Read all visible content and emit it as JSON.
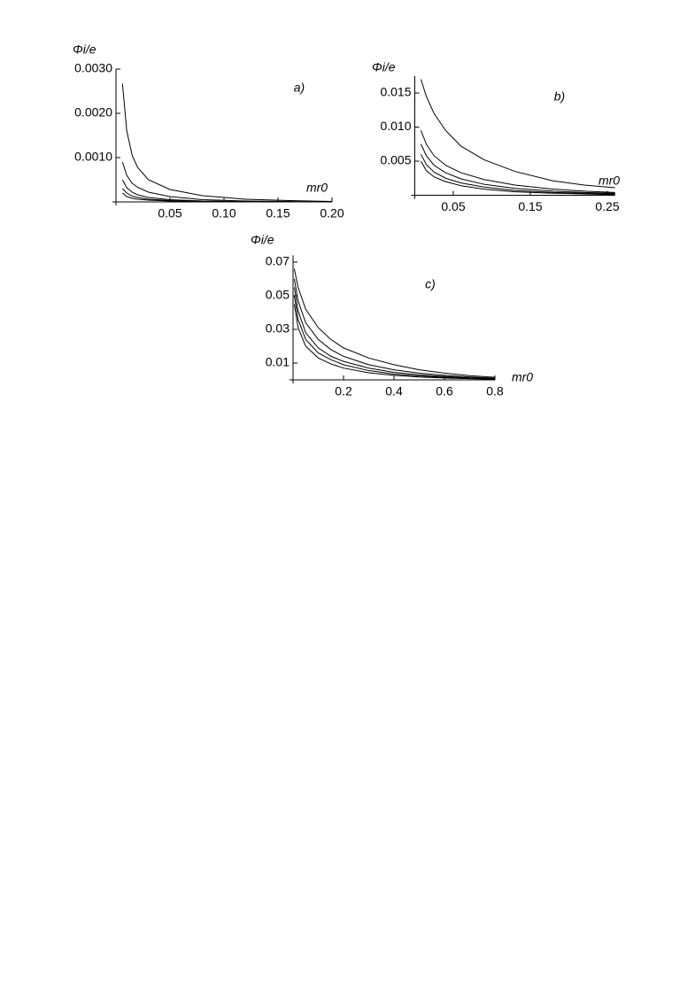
{
  "chart_data": [
    {
      "type": "line",
      "title": "a)",
      "y_label": "Φi/e",
      "x_label": "mr0",
      "x": [
        0.006,
        0.01,
        0.015,
        0.02,
        0.03,
        0.05,
        0.08,
        0.12,
        0.16,
        0.2
      ],
      "series": [
        {
          "color": "#000000",
          "values": [
            0.00267,
            0.0016,
            0.00105,
            0.00078,
            0.0005,
            0.00028,
            0.00014,
            6e-05,
            3e-05,
            1e-05
          ]
        },
        {
          "color": "#000000",
          "values": [
            0.0009,
            0.0006,
            0.00042,
            0.00033,
            0.00022,
            0.00012,
            5e-05,
            2e-05,
            1e-05,
            0
          ]
        },
        {
          "color": "#000000",
          "values": [
            0.0005,
            0.00032,
            0.00022,
            0.00016,
            0.0001,
            5e-05,
            2e-05,
            1e-05,
            0,
            0
          ]
        },
        {
          "color": "#000000",
          "values": [
            0.0003,
            0.0002,
            0.00013,
            0.0001,
            6e-05,
            3e-05,
            1e-05,
            0,
            0,
            0
          ]
        },
        {
          "color": "#000000",
          "values": [
            0.0002,
            0.00012,
            8e-05,
            6e-05,
            4e-05,
            2e-05,
            1e-05,
            0,
            0,
            0
          ]
        }
      ],
      "xlim": [
        0,
        0.2
      ],
      "xticks": [
        0.05,
        {
          "value": 0.1,
          "label": "0.10"
        },
        0.15,
        {
          "value": 0.2,
          "label": "0.20"
        }
      ],
      "ylim": [
        0,
        0.003
      ],
      "yticks": [
        {
          "value": 0.001,
          "label": "0.0010"
        },
        {
          "value": 0.002,
          "label": "0.0020"
        },
        {
          "value": 0.003,
          "label": "0.0030"
        }
      ]
    },
    {
      "type": "line",
      "title": "b)",
      "y_label": "Φi/e",
      "x_label": "mr0",
      "x": [
        0.008,
        0.015,
        0.025,
        0.04,
        0.06,
        0.09,
        0.13,
        0.18,
        0.22,
        0.26
      ],
      "series": [
        {
          "color": "#000000",
          "values": [
            0.017,
            0.0145,
            0.012,
            0.0095,
            0.0072,
            0.0052,
            0.0035,
            0.0021,
            0.0015,
            0.0011
          ]
        },
        {
          "color": "#000000",
          "values": [
            0.0095,
            0.0075,
            0.0058,
            0.0044,
            0.0033,
            0.0023,
            0.0015,
            0.0009,
            0.0006,
            0.0004
          ]
        },
        {
          "color": "#000000",
          "values": [
            0.0075,
            0.0058,
            0.0044,
            0.0033,
            0.0024,
            0.0016,
            0.001,
            0.0006,
            0.0004,
            0.0003
          ]
        },
        {
          "color": "#000000",
          "values": [
            0.006,
            0.0045,
            0.0034,
            0.0025,
            0.0018,
            0.0012,
            0.0007,
            0.0004,
            0.0003,
            0.0002
          ]
        },
        {
          "color": "#000000",
          "values": [
            0.005,
            0.0036,
            0.0027,
            0.002,
            0.0014,
            0.0009,
            0.0005,
            0.0003,
            0.0002,
            0.0001
          ]
        }
      ],
      "xlim": [
        0,
        0.26
      ],
      "xticks": [
        0.05,
        0.15,
        0.25
      ],
      "ylim": [
        0,
        0.0175
      ],
      "yticks": [
        0.005,
        {
          "value": 0.01,
          "label": "0.010"
        },
        0.015
      ]
    },
    {
      "type": "line",
      "title": "c)",
      "y_label": "Φi/e",
      "x_label": "mr0",
      "x": [
        0.005,
        0.02,
        0.05,
        0.1,
        0.15,
        0.2,
        0.3,
        0.4,
        0.5,
        0.6,
        0.7,
        0.8
      ],
      "series": [
        {
          "color": "#000000",
          "values": [
            0.066,
            0.055,
            0.042,
            0.031,
            0.024,
            0.019,
            0.013,
            0.009,
            0.006,
            0.004,
            0.0025,
            0.0015
          ]
        },
        {
          "color": "#000000",
          "values": [
            0.06,
            0.047,
            0.034,
            0.024,
            0.018,
            0.014,
            0.009,
            0.006,
            0.004,
            0.0027,
            0.0017,
            0.001
          ]
        },
        {
          "color": "#000000",
          "values": [
            0.055,
            0.041,
            0.028,
            0.019,
            0.014,
            0.011,
            0.007,
            0.0045,
            0.003,
            0.002,
            0.0012,
            0.0007
          ]
        },
        {
          "color": "#000000",
          "values": [
            0.05,
            0.036,
            0.024,
            0.016,
            0.012,
            0.009,
            0.0055,
            0.0035,
            0.0023,
            0.0015,
            0.0009,
            0.0005
          ]
        },
        {
          "color": "#000000",
          "values": [
            0.045,
            0.031,
            0.02,
            0.013,
            0.0095,
            0.007,
            0.0042,
            0.0027,
            0.0017,
            0.0011,
            0.0007,
            0.0004
          ]
        }
      ],
      "xlim": [
        0,
        0.8
      ],
      "xticks": [
        0.2,
        0.4,
        0.6,
        0.8
      ],
      "ylim": [
        0,
        0.074
      ],
      "yticks": [
        0.01,
        0.03,
        0.05,
        0.07
      ]
    }
  ]
}
